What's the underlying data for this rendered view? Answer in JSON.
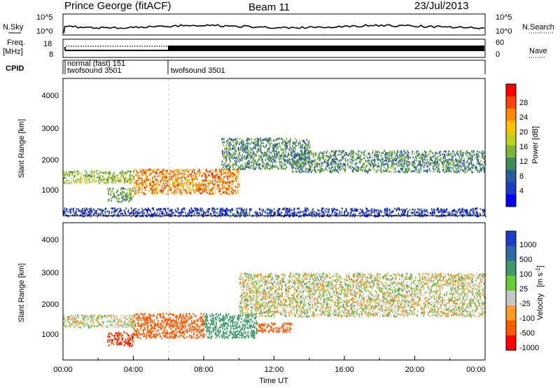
{
  "header": {
    "station": "Prince George (fitACF)",
    "beam": "Beam 11",
    "date": "23/Jul/2013"
  },
  "panels": {
    "nsky": {
      "label": "N.Sky",
      "ticks": [
        "10^5",
        "10^0"
      ],
      "right_label": "N.Search",
      "right_ticks": [
        "10^5",
        "10^0"
      ]
    },
    "freq": {
      "label_line1": "Freq.",
      "label_line2": "[MHz]",
      "ticks": [
        "18",
        "8"
      ],
      "right_label": "Nave",
      "right_ticks": [
        "60",
        "0"
      ]
    },
    "cpid": {
      "label": "CPID",
      "entries": [
        "normal (fast) 151",
        "twofsound 3501",
        "twofsound 3501"
      ]
    }
  },
  "axes": {
    "ylabel": "Slant Range [km]",
    "yticks": [
      "4000",
      "3000",
      "2000",
      "1000"
    ],
    "xlabel": "Time UT",
    "xticks": [
      "00:00",
      "04:00",
      "08:00",
      "12:00",
      "16:00",
      "20:00",
      "00:00"
    ]
  },
  "colorbars": {
    "power": {
      "label": "Power [dB]",
      "ticks": [
        "28",
        "24",
        "20",
        "16",
        "12",
        "8",
        "4"
      ],
      "colors": [
        "#ff0000",
        "#ff4400",
        "#ff8a00",
        "#ffc000",
        "#c0d020",
        "#7fb43a",
        "#3f8a5a",
        "#2a5aa0",
        "#1e3ccc",
        "#0000ff"
      ]
    },
    "velocity": {
      "label": "Velocity",
      "unit": "[m s",
      "unit_exp": "-1",
      "unit_close": "]",
      "ticks": [
        "1000",
        "500",
        "100",
        "25",
        "-25",
        "-100",
        "-500",
        "-1000"
      ],
      "colors": [
        "#1e3ccc",
        "#2f6aa8",
        "#3f9a6a",
        "#66cc33",
        "#c8c8c8",
        "#ff9a20",
        "#ff5a00",
        "#ff0000"
      ]
    }
  },
  "chart_data": [
    {
      "type": "heatmap",
      "title": "Power",
      "xlabel": "Time UT",
      "ylabel": "Slant Range [km]",
      "xlim": [
        "00:00",
        "24:00"
      ],
      "ylim": [
        180,
        4600
      ],
      "colorbar": {
        "label": "Power [dB]",
        "range": [
          0,
          30
        ]
      },
      "regions": [
        {
          "t_start": 0.0,
          "t_end": 4.0,
          "r_low": 1250,
          "r_high": 1650,
          "value": 16
        },
        {
          "t_start": 2.5,
          "t_end": 4.0,
          "r_low": 650,
          "r_high": 1100,
          "value": 14
        },
        {
          "t_start": 4.0,
          "t_end": 10.0,
          "r_low": 900,
          "r_high": 1700,
          "value": 24
        },
        {
          "t_start": 9.0,
          "t_end": 14.0,
          "r_low": 1700,
          "r_high": 2700,
          "value": 12
        },
        {
          "t_start": 13.0,
          "t_end": 24.0,
          "r_low": 1600,
          "r_high": 2300,
          "value": 12
        },
        {
          "t_start": 0.0,
          "t_end": 24.0,
          "r_low": 180,
          "r_high": 450,
          "value": 6
        }
      ]
    },
    {
      "type": "heatmap",
      "title": "Velocity",
      "xlabel": "Time UT",
      "ylabel": "Slant Range [km]",
      "xlim": [
        "00:00",
        "24:00"
      ],
      "ylim": [
        180,
        4600
      ],
      "colorbar": {
        "label": "Velocity [m s-1]",
        "range": [
          -1000,
          1000
        ]
      },
      "regions": [
        {
          "t_start": 0.0,
          "t_end": 4.0,
          "r_low": 1250,
          "r_high": 1650,
          "value": 0
        },
        {
          "t_start": 2.5,
          "t_end": 4.0,
          "r_low": 650,
          "r_high": 1100,
          "value": -500
        },
        {
          "t_start": 4.0,
          "t_end": 8.0,
          "r_low": 900,
          "r_high": 1700,
          "value": -200
        },
        {
          "t_start": 8.0,
          "t_end": 11.0,
          "r_low": 900,
          "r_high": 1700,
          "value": 150
        },
        {
          "t_start": 11.0,
          "t_end": 13.0,
          "r_low": 1100,
          "r_high": 1400,
          "value": -200
        },
        {
          "t_start": 10.0,
          "t_end": 24.0,
          "r_low": 1600,
          "r_high": 3000,
          "value": 0
        }
      ]
    }
  ]
}
